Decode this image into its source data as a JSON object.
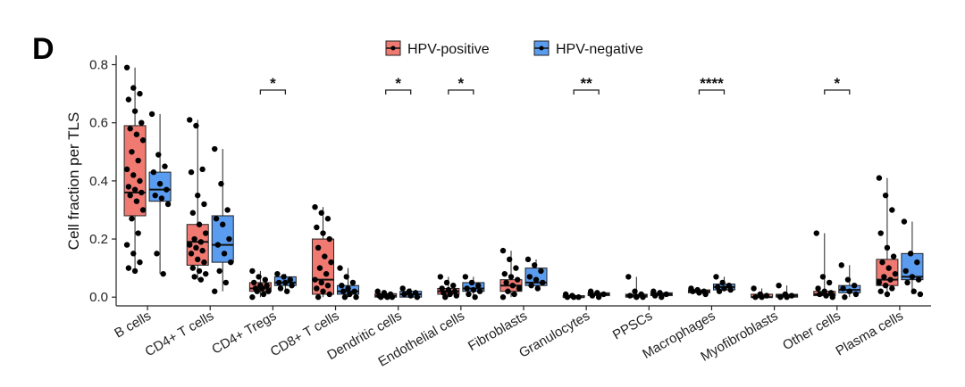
{
  "panel_label": "D",
  "chart_data": {
    "type": "box",
    "title": "",
    "xlabel": "",
    "ylabel": "Cell fraction per TLS",
    "ylim": [
      -0.03,
      0.82
    ],
    "yticks": [
      0.0,
      0.2,
      0.4,
      0.6,
      0.8
    ],
    "ytick_labels": [
      "0.0",
      "0.2",
      "0.4",
      "0.6",
      "0.8"
    ],
    "grid": false,
    "legend": {
      "placement": "top-center"
    },
    "colors": {
      "HPV-positive": "#f07a72",
      "HPV-negative": "#5a9cf0"
    },
    "categories": [
      "B cells",
      "CD4+ T cells",
      "CD4+ Tregs",
      "CD8+ T cells",
      "Dendritic cells",
      "Endothelial cells",
      "Fibroblasts",
      "Granulocytes",
      "PPSCs",
      "Macrophages",
      "Myofibroblasts",
      "Other cells",
      "Plasma cells"
    ],
    "series": [
      {
        "name": "HPV-positive",
        "boxes": [
          {
            "q1": 0.28,
            "median": 0.36,
            "q3": 0.59,
            "lo": 0.09,
            "hi": 0.79
          },
          {
            "q1": 0.11,
            "median": 0.19,
            "q3": 0.25,
            "lo": 0.06,
            "hi": 0.61
          },
          {
            "q1": 0.02,
            "median": 0.03,
            "q3": 0.05,
            "lo": 0.0,
            "hi": 0.09
          },
          {
            "q1": 0.01,
            "median": 0.06,
            "q3": 0.2,
            "lo": 0.0,
            "hi": 0.31
          },
          {
            "q1": 0.0,
            "median": 0.005,
            "q3": 0.012,
            "lo": 0.0,
            "hi": 0.02
          },
          {
            "q1": 0.01,
            "median": 0.02,
            "q3": 0.03,
            "lo": 0.0,
            "hi": 0.07
          },
          {
            "q1": 0.02,
            "median": 0.04,
            "q3": 0.06,
            "lo": 0.0,
            "hi": 0.16
          },
          {
            "q1": 0.0,
            "median": 0.0,
            "q3": 0.005,
            "lo": 0.0,
            "hi": 0.01
          },
          {
            "q1": 0.0,
            "median": 0.005,
            "q3": 0.01,
            "lo": 0.0,
            "hi": 0.07
          },
          {
            "q1": 0.015,
            "median": 0.02,
            "q3": 0.025,
            "lo": 0.01,
            "hi": 0.03
          },
          {
            "q1": 0.0,
            "median": 0.0,
            "q3": 0.01,
            "lo": 0.0,
            "hi": 0.03
          },
          {
            "q1": 0.005,
            "median": 0.01,
            "q3": 0.02,
            "lo": 0.0,
            "hi": 0.22
          },
          {
            "q1": 0.04,
            "median": 0.06,
            "q3": 0.13,
            "lo": 0.0,
            "hi": 0.41
          }
        ],
        "points": [
          [
            0.79,
            0.72,
            0.7,
            0.68,
            0.64,
            0.6,
            0.58,
            0.56,
            0.54,
            0.5,
            0.47,
            0.44,
            0.42,
            0.4,
            0.38,
            0.37,
            0.36,
            0.35,
            0.33,
            0.3,
            0.27,
            0.22,
            0.18,
            0.15,
            0.12,
            0.1,
            0.09
          ],
          [
            0.61,
            0.59,
            0.44,
            0.43,
            0.35,
            0.32,
            0.29,
            0.25,
            0.22,
            0.2,
            0.19,
            0.18,
            0.17,
            0.16,
            0.15,
            0.13,
            0.12,
            0.1,
            0.09,
            0.08,
            0.07,
            0.06
          ],
          [
            0.09,
            0.07,
            0.06,
            0.05,
            0.04,
            0.04,
            0.03,
            0.03,
            0.02,
            0.02,
            0.01,
            0.0
          ],
          [
            0.31,
            0.29,
            0.27,
            0.24,
            0.22,
            0.2,
            0.17,
            0.14,
            0.12,
            0.1,
            0.08,
            0.06,
            0.05,
            0.04,
            0.03,
            0.02,
            0.01,
            0.0
          ],
          [
            0.02,
            0.015,
            0.01,
            0.005,
            0.005,
            0.0,
            0.0,
            0.0
          ],
          [
            0.07,
            0.05,
            0.04,
            0.03,
            0.025,
            0.02,
            0.015,
            0.01,
            0.005,
            0.0
          ],
          [
            0.16,
            0.13,
            0.1,
            0.08,
            0.07,
            0.06,
            0.05,
            0.04,
            0.03,
            0.02,
            0.01,
            0.0
          ],
          [
            0.01,
            0.005,
            0.0,
            0.0,
            0.0
          ],
          [
            0.07,
            0.02,
            0.01,
            0.005,
            0.0,
            0.0
          ],
          [
            0.03,
            0.025,
            0.02,
            0.02,
            0.015,
            0.01
          ],
          [
            0.03,
            0.01,
            0.005,
            0.0,
            0.0
          ],
          [
            0.22,
            0.07,
            0.05,
            0.03,
            0.02,
            0.015,
            0.01,
            0.005,
            0.0
          ],
          [
            0.41,
            0.35,
            0.3,
            0.22,
            0.17,
            0.14,
            0.12,
            0.1,
            0.08,
            0.07,
            0.06,
            0.05,
            0.04,
            0.03,
            0.02,
            0.01
          ]
        ]
      },
      {
        "name": "HPV-negative",
        "boxes": [
          {
            "q1": 0.33,
            "median": 0.37,
            "q3": 0.43,
            "lo": 0.08,
            "hi": 0.63
          },
          {
            "q1": 0.12,
            "median": 0.18,
            "q3": 0.28,
            "lo": 0.02,
            "hi": 0.51
          },
          {
            "q1": 0.04,
            "median": 0.05,
            "q3": 0.07,
            "lo": 0.02,
            "hi": 0.08
          },
          {
            "q1": 0.01,
            "median": 0.02,
            "q3": 0.04,
            "lo": 0.0,
            "hi": 0.1
          },
          {
            "q1": 0.0,
            "median": 0.01,
            "q3": 0.02,
            "lo": 0.0,
            "hi": 0.03
          },
          {
            "q1": 0.02,
            "median": 0.03,
            "q3": 0.05,
            "lo": 0.0,
            "hi": 0.07
          },
          {
            "q1": 0.04,
            "median": 0.05,
            "q3": 0.1,
            "lo": 0.03,
            "hi": 0.13
          },
          {
            "q1": 0.005,
            "median": 0.01,
            "q3": 0.015,
            "lo": 0.0,
            "hi": 0.02
          },
          {
            "q1": 0.005,
            "median": 0.01,
            "q3": 0.015,
            "lo": 0.0,
            "hi": 0.02
          },
          {
            "q1": 0.025,
            "median": 0.035,
            "q3": 0.045,
            "lo": 0.02,
            "hi": 0.07
          },
          {
            "q1": 0.0,
            "median": 0.005,
            "q3": 0.01,
            "lo": 0.0,
            "hi": 0.04
          },
          {
            "q1": 0.015,
            "median": 0.025,
            "q3": 0.04,
            "lo": 0.0,
            "hi": 0.11
          },
          {
            "q1": 0.06,
            "median": 0.07,
            "q3": 0.15,
            "lo": 0.01,
            "hi": 0.26
          }
        ],
        "points": [
          [
            0.63,
            0.49,
            0.45,
            0.43,
            0.39,
            0.37,
            0.35,
            0.34,
            0.32,
            0.15,
            0.08
          ],
          [
            0.51,
            0.39,
            0.3,
            0.27,
            0.25,
            0.2,
            0.18,
            0.15,
            0.12,
            0.09,
            0.05,
            0.02
          ],
          [
            0.08,
            0.07,
            0.06,
            0.05,
            0.05,
            0.04,
            0.03,
            0.02
          ],
          [
            0.1,
            0.07,
            0.05,
            0.04,
            0.03,
            0.02,
            0.02,
            0.01,
            0.0,
            0.0
          ],
          [
            0.03,
            0.02,
            0.015,
            0.01,
            0.005,
            0.0
          ],
          [
            0.07,
            0.05,
            0.04,
            0.03,
            0.025,
            0.02,
            0.01,
            0.0
          ],
          [
            0.13,
            0.11,
            0.09,
            0.07,
            0.06,
            0.05,
            0.04,
            0.03
          ],
          [
            0.02,
            0.015,
            0.01,
            0.005,
            0.0
          ],
          [
            0.02,
            0.015,
            0.01,
            0.005,
            0.0
          ],
          [
            0.07,
            0.05,
            0.04,
            0.035,
            0.03,
            0.025,
            0.02
          ],
          [
            0.04,
            0.01,
            0.005,
            0.0,
            0.0
          ],
          [
            0.11,
            0.06,
            0.04,
            0.03,
            0.02,
            0.01,
            0.0
          ],
          [
            0.26,
            0.15,
            0.12,
            0.09,
            0.07,
            0.06,
            0.05,
            0.02,
            0.01
          ]
        ]
      }
    ],
    "annotations": [
      {
        "category": "CD4+ Tregs",
        "label": "*"
      },
      {
        "category": "Dendritic cells",
        "label": "*"
      },
      {
        "category": "Endothelial cells",
        "label": "*"
      },
      {
        "category": "Granulocytes",
        "label": "**"
      },
      {
        "category": "Macrophages",
        "label": "****"
      },
      {
        "category": "Other cells",
        "label": "*"
      }
    ]
  }
}
